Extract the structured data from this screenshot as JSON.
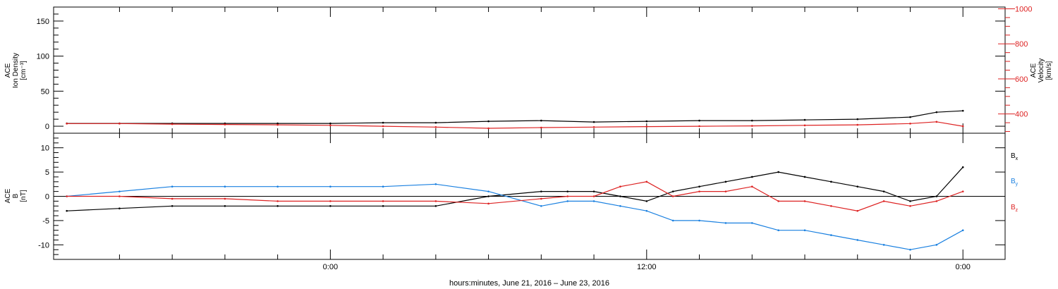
{
  "chart_data": [
    {
      "type": "line",
      "panel": "top",
      "ylabel_left": [
        "ACE",
        "Ion Density",
        "[cm⁻³]"
      ],
      "ylabel_right": [
        "ACE",
        "Velocity",
        "[km/s]"
      ],
      "ylim_left": [
        -10,
        170
      ],
      "ylim_right": [
        290,
        1010
      ],
      "yticks_left": [
        0,
        50,
        100,
        150
      ],
      "yticks_right": [
        400,
        600,
        800,
        1000
      ],
      "series": [
        {
          "axis": "left",
          "color": "#000000",
          "x": [
            -10,
            -8,
            -6,
            -4,
            -2,
            0,
            2,
            4,
            6,
            8,
            10,
            12,
            14,
            16,
            18,
            20,
            22,
            23,
            24
          ],
          "values": [
            4,
            4,
            4,
            4,
            4,
            4,
            5,
            5,
            7,
            8,
            6,
            7,
            8,
            8,
            9,
            10,
            13,
            20,
            22
          ]
        },
        {
          "axis": "right",
          "color": "#dd2222",
          "x": [
            -10,
            -8,
            -6,
            -4,
            -2,
            0,
            2,
            4,
            6,
            8,
            10,
            12,
            14,
            16,
            18,
            20,
            22,
            23,
            24
          ],
          "values": [
            345,
            345,
            342,
            340,
            338,
            335,
            330,
            325,
            318,
            322,
            325,
            328,
            330,
            332,
            335,
            338,
            345,
            355,
            330
          ]
        }
      ]
    },
    {
      "type": "line",
      "panel": "bottom",
      "ylabel": [
        "ACE",
        "B",
        "[nT]"
      ],
      "ylim": [
        -13,
        13
      ],
      "yticks": [
        -10,
        -5,
        0,
        5,
        10
      ],
      "legend": [
        "Bx",
        "By",
        "Bz"
      ],
      "legend_placement": "right",
      "series": [
        {
          "name": "Bx",
          "color": "#000000",
          "x": [
            -10,
            -8,
            -6,
            -4,
            -2,
            0,
            2,
            4,
            6,
            8,
            9,
            10,
            11,
            12,
            13,
            14,
            15,
            16,
            17,
            18,
            19,
            20,
            21,
            22,
            23,
            24
          ],
          "values": [
            -3,
            -2.5,
            -2,
            -2,
            -2,
            -2,
            -2,
            -2,
            0,
            1,
            1,
            1,
            0,
            -1,
            1,
            2,
            3,
            4,
            5,
            4,
            3,
            2,
            1,
            -1,
            0,
            6
          ]
        },
        {
          "name": "By",
          "color": "#1a80e0",
          "x": [
            -10,
            -8,
            -6,
            -4,
            -2,
            0,
            2,
            4,
            6,
            8,
            9,
            10,
            11,
            12,
            13,
            14,
            15,
            16,
            17,
            18,
            19,
            20,
            21,
            22,
            23,
            24
          ],
          "values": [
            0,
            1,
            2,
            2,
            2,
            2,
            2,
            2.5,
            1,
            -2,
            -1,
            -1,
            -2,
            -3,
            -5,
            -5,
            -5.5,
            -5.5,
            -7,
            -7,
            -8,
            -9,
            -10,
            -11,
            -10,
            -7
          ]
        },
        {
          "name": "Bz",
          "color": "#dd2222",
          "x": [
            -10,
            -8,
            -6,
            -4,
            -2,
            0,
            2,
            4,
            6,
            8,
            9,
            10,
            11,
            12,
            13,
            14,
            15,
            16,
            17,
            18,
            19,
            20,
            21,
            22,
            23,
            24
          ],
          "values": [
            0,
            0,
            -0.5,
            -0.5,
            -1,
            -1,
            -1,
            -1,
            -1.5,
            -0.5,
            0,
            0,
            2,
            3,
            0,
            1,
            1,
            2,
            -1,
            -1,
            -2,
            -3,
            -1,
            -2,
            -1,
            1
          ]
        }
      ]
    }
  ],
  "xaxis": {
    "xlabel": "hours:minutes, June 21, 2016 – June 23, 2016",
    "xlim": [
      -10.5,
      25.6
    ],
    "tick_labels": [
      {
        "x": 0,
        "label": "0:00"
      },
      {
        "x": 12,
        "label": "12:00"
      },
      {
        "x": 24,
        "label": "0:00"
      }
    ],
    "minor_ticks": [
      -8,
      -6,
      -4,
      -2,
      2,
      4,
      6,
      8,
      10,
      14,
      16,
      18,
      20,
      22
    ]
  },
  "colors": {
    "black": "#000000",
    "red": "#dd2222",
    "blue": "#1a80e0"
  }
}
